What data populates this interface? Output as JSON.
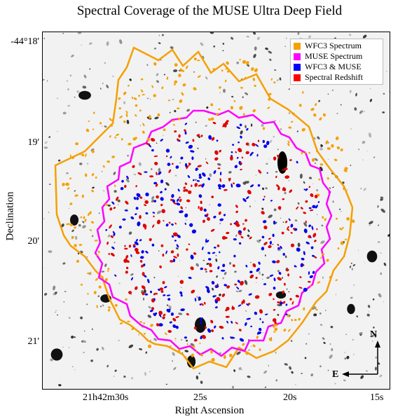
{
  "title": "Spectral Coverage of the MUSE Ultra Deep Field",
  "y_axis": {
    "label": "Declination",
    "ticks": [
      "-44°18'",
      "19'",
      "20'",
      "21'"
    ]
  },
  "x_axis": {
    "label": "Right Ascension",
    "ticks": [
      "21h42m30s",
      "25s",
      "20s",
      "15s"
    ]
  },
  "legend": [
    {
      "label": "WFC3 Spectrum",
      "color": "#f5a000"
    },
    {
      "label": "MUSE Spectrum",
      "color": "#ff00ff"
    },
    {
      "label": "WFC3 & MUSE",
      "color": "#0000ff"
    },
    {
      "label": "Spectral Redshift",
      "color": "#ff0000"
    }
  ],
  "compass": {
    "north": "N",
    "east": "E"
  },
  "colors": {
    "wfc3_outline": "#f5a000",
    "muse_outline": "#ff00ff",
    "both": "#0000ff",
    "redshift": "#ff0000",
    "background": "#f4f4f4"
  }
}
